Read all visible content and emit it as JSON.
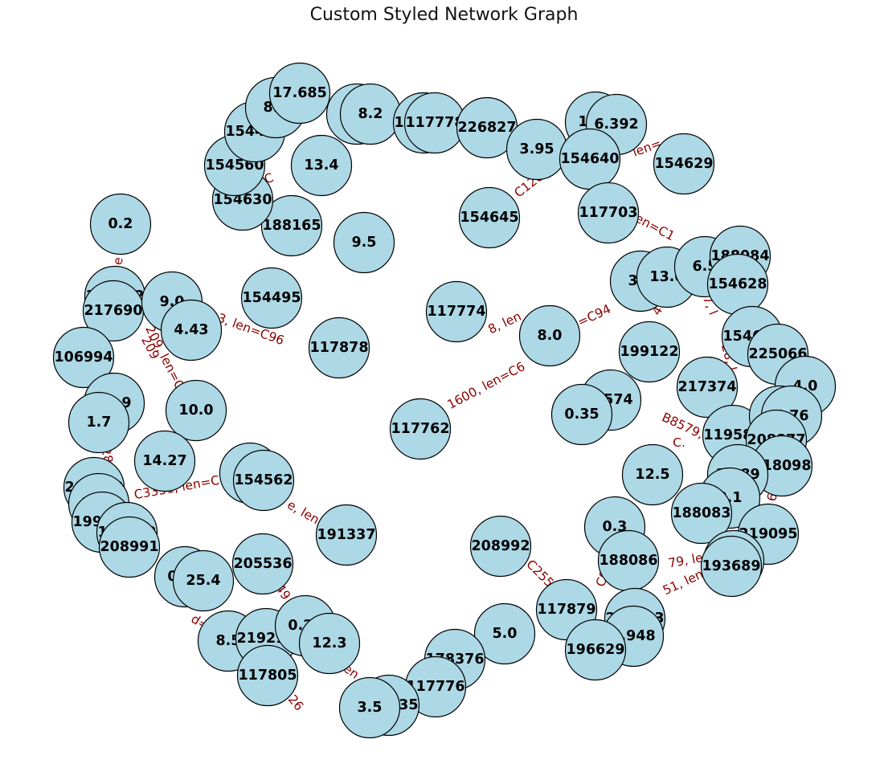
{
  "title": "Custom Styled Network Graph",
  "colors": {
    "node_fill": "#add8e6",
    "node_stroke": "#000000",
    "edge_label": "#8b0000",
    "title": "#111111"
  },
  "nodes": [
    "0.2",
    "117792",
    "217690",
    "106994",
    "22.9",
    "1.7",
    "208993",
    "31.4",
    "199760",
    "179882",
    "208991",
    "9.0",
    "4.43",
    "10.0",
    "14.27",
    "0.55",
    "25.4",
    "8.5",
    "219297",
    "117805",
    "0.25",
    "12.3",
    "205536",
    "5.1",
    "154562",
    "191337",
    "154495",
    "117878",
    "188165",
    "9.5",
    "154630",
    "154560",
    "154486",
    "8.2",
    "17.685",
    "13.4",
    "0.3",
    "8.2",
    "179744",
    "117778",
    "226827",
    "3.95",
    "154645",
    "10.5",
    "6.392",
    "154640",
    "154629",
    "117703",
    "117774",
    "117762",
    "8.0",
    "3.0",
    "13.0",
    "6.5",
    "188084",
    "154628",
    "154631",
    "225066",
    "4.0",
    "199122",
    "217374",
    "0.574",
    "0.35",
    "119581",
    "667",
    "6.76",
    "208877",
    "218098",
    "13.89",
    "8.1",
    "188083",
    "12.5",
    "219095",
    "0.6",
    "193689",
    "0.3",
    "188086",
    "208992",
    "117879",
    "218043",
    "5.948",
    "196629",
    "5.0",
    "178376",
    "117776",
    "198335",
    "3.5"
  ],
  "edge_labels": [
    "209",
    "e",
    "209, len=C",
    "428",
    "C3351, len=C",
    "3, len=C96",
    "5, len=C",
    "49",
    "d=",
    "26",
    "en",
    "e, len=",
    "1600, len=C6",
    "8, len",
    "d=C94",
    "4",
    "C1209",
    "len=",
    "12, len=C1",
    "787, l",
    "28, l",
    "B8579, le",
    "C.",
    "6",
    "79, len",
    "51, len",
    "C255",
    "C962"
  ]
}
